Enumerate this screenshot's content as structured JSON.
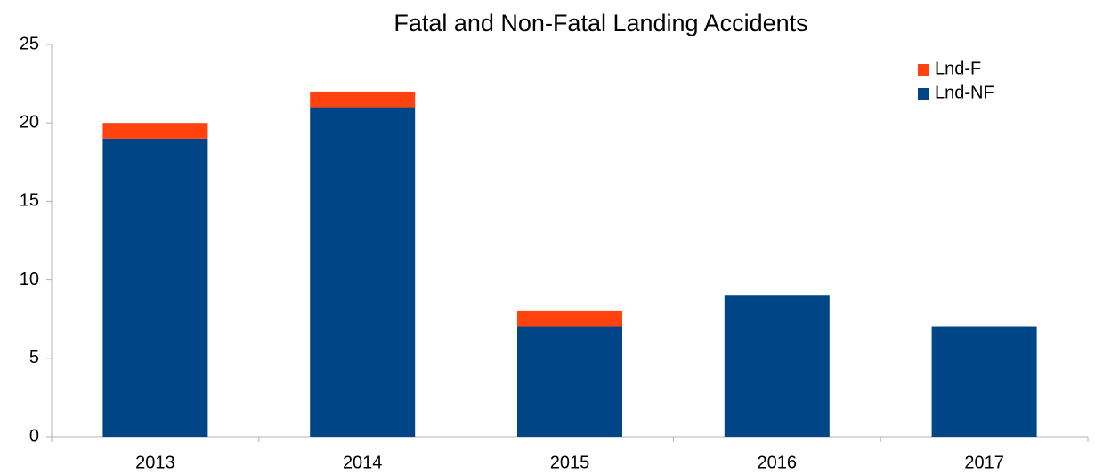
{
  "chart_data": {
    "type": "stacked_bar",
    "title": "Fatal and Non-Fatal Landing Accidents",
    "categories": [
      "2013",
      "2014",
      "2015",
      "2016",
      "2017"
    ],
    "series": [
      {
        "name": "Lnd-F",
        "color": "#ff420e",
        "values": [
          1,
          1,
          1,
          0,
          0
        ]
      },
      {
        "name": "Lnd-NF",
        "color": "#004586",
        "values": [
          19,
          21,
          7,
          9,
          7
        ]
      }
    ],
    "ylim": [
      0,
      25
    ],
    "yticks": [
      0,
      5,
      10,
      15,
      20,
      25
    ],
    "grid": false,
    "legend": "top-right"
  }
}
